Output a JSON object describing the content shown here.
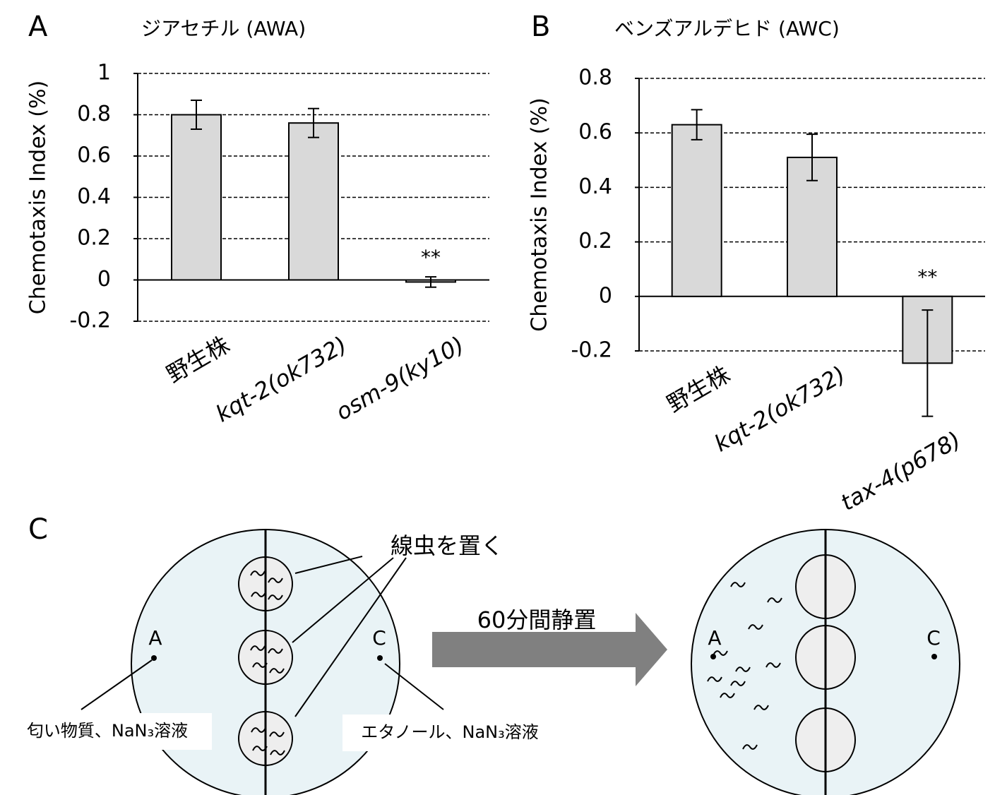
{
  "chart_data": [
    {
      "type": "bar",
      "panel": "A",
      "title": "ジアセチル (AWA)",
      "ylabel": "Chemotaxis Index (%)",
      "categories": [
        "野生株",
        "kqt-2(ok732)",
        "osm-9(ky10)"
      ],
      "values": [
        0.8,
        0.76,
        -0.01
      ],
      "errors": [
        0.07,
        0.07,
        0.025
      ],
      "annotations": [
        null,
        null,
        "**"
      ],
      "ylim": [
        -0.2,
        1
      ],
      "yticks": [
        -0.2,
        0,
        0.2,
        0.4,
        0.6,
        0.8,
        1
      ],
      "color": "#d9d9d9",
      "grid": true
    },
    {
      "type": "bar",
      "panel": "B",
      "title": "ベンズアルデヒド (AWC)",
      "ylabel": "Chemotaxis Index (%)",
      "categories": [
        "野生株",
        "kqt-2(ok732)",
        "tax-4(p678)"
      ],
      "values": [
        0.63,
        0.51,
        -0.245
      ],
      "errors": [
        0.055,
        0.085,
        0.195
      ],
      "annotations": [
        null,
        null,
        "**"
      ],
      "ylim": [
        -0.2,
        0.8
      ],
      "yticks": [
        -0.2,
        0,
        0.2,
        0.4,
        0.6,
        0.8
      ],
      "color": "#d9d9d9",
      "grid": true
    }
  ],
  "diagram": {
    "label": "C",
    "worm_note": "線虫を置く",
    "arrow_label": "60分間静置",
    "before": {
      "left_point": "A",
      "right_point": "C",
      "left_note": "匂い物質、NaN₃溶液",
      "right_note": "エタノール、NaN₃溶液"
    },
    "after": {
      "left_point": "A",
      "right_point": "C"
    }
  }
}
